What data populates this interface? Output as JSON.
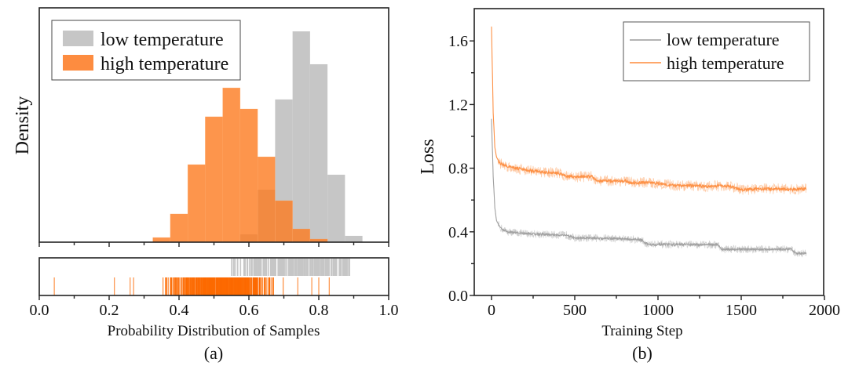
{
  "chart_data": [
    {
      "id": "a",
      "type": "histogram",
      "caption": "(a)",
      "xlabel": "Probability Distribution of Samples",
      "ylabel": "Density",
      "xlim": [
        0.0,
        1.0
      ],
      "xticks": [
        "0.0",
        "0.2",
        "0.4",
        "0.6",
        "0.8",
        "1.0"
      ],
      "yticks_shown": false,
      "legend_position": "top-left",
      "bin_width": 0.05,
      "series": [
        {
          "name": "low temperature",
          "color": "#c6c6c6",
          "bins": [
            {
              "start": 0.575,
              "end": 0.625,
              "density": 0.037
            },
            {
              "start": 0.625,
              "end": 0.675,
              "density": 0.249
            },
            {
              "start": 0.675,
              "end": 0.725,
              "density": 0.677
            },
            {
              "start": 0.725,
              "end": 0.775,
              "density": 1.0
            },
            {
              "start": 0.775,
              "end": 0.825,
              "density": 0.844
            },
            {
              "start": 0.825,
              "end": 0.875,
              "density": 0.32
            },
            {
              "start": 0.875,
              "end": 0.925,
              "density": 0.03
            }
          ],
          "rug_range": [
            0.55,
            0.89
          ]
        },
        {
          "name": "high temperature",
          "color": "#fd7a1f",
          "bins": [
            {
              "start": 0.325,
              "end": 0.375,
              "density": 0.022
            },
            {
              "start": 0.375,
              "end": 0.425,
              "density": 0.134
            },
            {
              "start": 0.425,
              "end": 0.475,
              "density": 0.368
            },
            {
              "start": 0.475,
              "end": 0.525,
              "density": 0.595
            },
            {
              "start": 0.525,
              "end": 0.575,
              "density": 0.732
            },
            {
              "start": 0.575,
              "end": 0.625,
              "density": 0.632
            },
            {
              "start": 0.625,
              "end": 0.675,
              "density": 0.405
            },
            {
              "start": 0.675,
              "end": 0.725,
              "density": 0.197
            },
            {
              "start": 0.725,
              "end": 0.775,
              "density": 0.063
            },
            {
              "start": 0.775,
              "end": 0.825,
              "density": 0.015
            }
          ],
          "rug_range": [
            0.04,
            0.83
          ],
          "rug_outliers": [
            0.043,
            0.215,
            0.26,
            0.27,
            0.74,
            0.78,
            0.8,
            0.83
          ]
        }
      ]
    },
    {
      "id": "b",
      "type": "line",
      "caption": "(b)",
      "xlabel": "Training Step",
      "ylabel": "Loss",
      "xlim": [
        -100,
        2000
      ],
      "ylim": [
        0.0,
        1.8
      ],
      "xticks": [
        "0",
        "500",
        "1000",
        "1500",
        "2000"
      ],
      "yticks": [
        "0.0",
        "0.4",
        "0.8",
        "1.2",
        "1.6"
      ],
      "legend_position": "top-right",
      "series": [
        {
          "name": "low temperature",
          "color": "#9a9a9a",
          "x": [
            0,
            10,
            20,
            30,
            50,
            75,
            100,
            200,
            300,
            400,
            450,
            500,
            600,
            700,
            800,
            900,
            920,
            950,
            1000,
            1100,
            1200,
            1300,
            1360,
            1380,
            1400,
            1500,
            1600,
            1700,
            1800,
            1820,
            1840,
            1890
          ],
          "y": [
            1.11,
            0.75,
            0.55,
            0.47,
            0.43,
            0.41,
            0.4,
            0.39,
            0.385,
            0.38,
            0.38,
            0.36,
            0.36,
            0.36,
            0.355,
            0.35,
            0.33,
            0.32,
            0.32,
            0.32,
            0.32,
            0.32,
            0.32,
            0.29,
            0.29,
            0.29,
            0.29,
            0.29,
            0.29,
            0.27,
            0.265,
            0.265
          ]
        },
        {
          "name": "high temperature",
          "color": "#fd8a3a",
          "x": [
            0,
            10,
            20,
            30,
            50,
            75,
            100,
            200,
            300,
            400,
            420,
            450,
            500,
            600,
            620,
            650,
            700,
            800,
            850,
            900,
            1000,
            1100,
            1200,
            1300,
            1400,
            1450,
            1500,
            1600,
            1700,
            1800,
            1890
          ],
          "y": [
            1.69,
            1.15,
            0.93,
            0.87,
            0.83,
            0.82,
            0.81,
            0.79,
            0.775,
            0.77,
            0.76,
            0.75,
            0.745,
            0.75,
            0.73,
            0.72,
            0.72,
            0.72,
            0.705,
            0.71,
            0.705,
            0.69,
            0.69,
            0.685,
            0.69,
            0.68,
            0.665,
            0.67,
            0.67,
            0.665,
            0.67
          ]
        }
      ]
    }
  ]
}
